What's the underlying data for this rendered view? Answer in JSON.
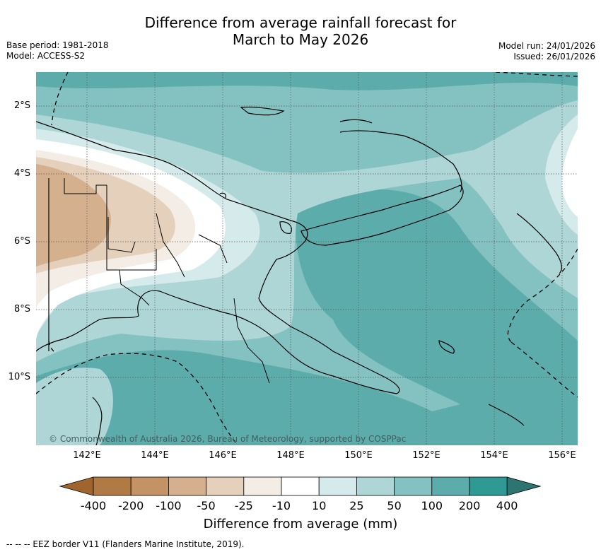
{
  "title_line1": "Difference from average rainfall forecast for",
  "title_line2": "March to May 2026",
  "meta": {
    "base_period": "Base period: 1981-2018",
    "model": "Model: ACCESS-S2",
    "model_run": "Model run: 24/01/2026",
    "issued": "Issued: 26/01/2026"
  },
  "latitude_labels": [
    "2°S",
    "4°S",
    "6°S",
    "8°S",
    "10°S"
  ],
  "longitude_labels": [
    "142°E",
    "144°E",
    "146°E",
    "148°E",
    "150°E",
    "152°E",
    "154°E",
    "156°E"
  ],
  "copyright": "© Commonwealth of Australia 2026, Bureau of Meteorology, supported by COSPPac",
  "colorbar": {
    "labels": [
      "-400",
      "-200",
      "-100",
      "-50",
      "-25",
      "-10",
      "10",
      "25",
      "50",
      "100",
      "200",
      "400"
    ],
    "colors": [
      "#a0652f",
      "#b07a44",
      "#c49365",
      "#d5b08e",
      "#e5d0bc",
      "#f3ede5",
      "#ffffff",
      "#d5eaea",
      "#aed6d6",
      "#84c1c1",
      "#5cacac",
      "#2f9a94",
      "#2e7470"
    ],
    "title": "Difference from average (mm)"
  },
  "eez_legend": "--  --  -- EEZ border V11 (Flanders Marine Institute, 2019)."
}
